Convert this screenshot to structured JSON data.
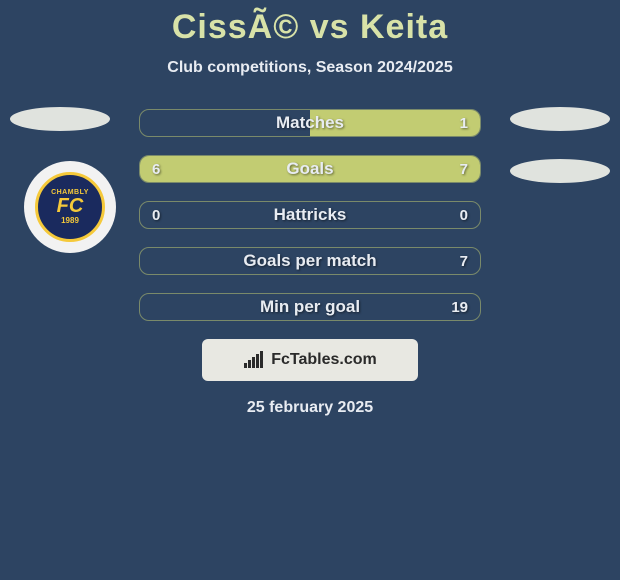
{
  "title": "CissÃ© vs Keita",
  "subtitle": "Club competitions, Season 2024/2025",
  "colors": {
    "background": "#2d4462",
    "title": "#d8e2a8",
    "text": "#e8ecf2",
    "bar_fill": "#c2cc72",
    "bar_border": "#7a8a6a",
    "side_badge": "#e0e3de",
    "footer_badge_bg": "#e8e8e2",
    "footer_text": "#2a2a2a"
  },
  "club_logo": {
    "top_text": "CHAMBLY",
    "center_text": "FC",
    "year": "1989",
    "outer_bg": "#f2f2f2",
    "inner_bg": "#1a2a5e",
    "ring_color": "#f5c93a",
    "text_color": "#f5c93a"
  },
  "bars": [
    {
      "label": "Matches",
      "left_val": "",
      "right_val": "1",
      "left_pct": 0,
      "right_pct": 50
    },
    {
      "label": "Goals",
      "left_val": "6",
      "right_val": "7",
      "left_pct": 42,
      "right_pct": 58
    },
    {
      "label": "Hattricks",
      "left_val": "0",
      "right_val": "0",
      "left_pct": 0,
      "right_pct": 0
    },
    {
      "label": "Goals per match",
      "left_val": "",
      "right_val": "7",
      "left_pct": 0,
      "right_pct": 0
    },
    {
      "label": "Min per goal",
      "left_val": "",
      "right_val": "19",
      "left_pct": 0,
      "right_pct": 0
    }
  ],
  "footer": {
    "brand": "FcTables.com",
    "date": "25 february 2025"
  }
}
